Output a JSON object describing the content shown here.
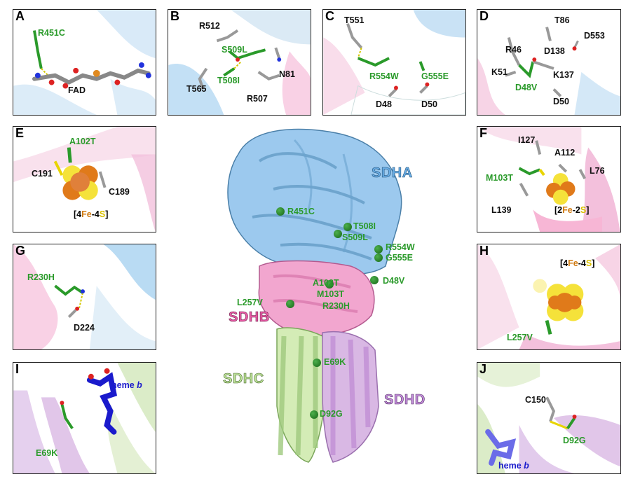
{
  "panels": {
    "A": {
      "letter": "A",
      "labels": [
        "R451C",
        "FAD"
      ]
    },
    "B": {
      "letter": "B",
      "labels": [
        "R512",
        "S509L",
        "T508I",
        "T565",
        "R507",
        "N81"
      ]
    },
    "C": {
      "letter": "C",
      "labels": [
        "T551",
        "R554W",
        "G555E",
        "D48",
        "D50"
      ]
    },
    "D": {
      "letter": "D",
      "labels": [
        "T86",
        "D553",
        "R46",
        "D138",
        "K51",
        "K137",
        "D48V",
        "D50"
      ]
    },
    "E": {
      "letter": "E",
      "labels": [
        "A102T",
        "C191",
        "C189"
      ],
      "cluster": {
        "n1": "[4",
        "fe": "Fe",
        "dash": "-4",
        "s": "S",
        "end": "]"
      }
    },
    "F": {
      "letter": "F",
      "labels": [
        "I127",
        "A112",
        "M103T",
        "L76",
        "L139"
      ],
      "cluster": {
        "n1": "[2",
        "fe": "Fe",
        "dash": "-2",
        "s": "S",
        "end": "]"
      }
    },
    "G": {
      "letter": "G",
      "labels": [
        "R230H",
        "D224"
      ]
    },
    "H": {
      "letter": "H",
      "labels": [
        "L257V"
      ],
      "cluster": {
        "n1": "[4",
        "fe": "Fe",
        "dash": "-4",
        "s": "S",
        "end": "]"
      }
    },
    "I": {
      "letter": "I",
      "labels": [
        "heme",
        "b",
        "E69K"
      ]
    },
    "J": {
      "letter": "J",
      "labels": [
        "C150",
        "D92G",
        "heme",
        "b"
      ]
    }
  },
  "center": {
    "subunits": {
      "sdha": "SDHA",
      "sdhb": "SDHB",
      "sdhc": "SDHC",
      "sdhd": "SDHD"
    },
    "mutations": [
      "R451C",
      "T508I",
      "S509L",
      "R554W",
      "G555E",
      "A102T",
      "D48V",
      "M103T",
      "L257V",
      "R230H",
      "E69K",
      "D92G"
    ]
  },
  "colors": {
    "mutation": "#2a9a2a",
    "sdha": "#9cc9ee",
    "sdhb": "#f2a6cf",
    "sdhc": "#d4ecb6",
    "sdhd": "#d9b8e4",
    "heme": "#1a1acc",
    "iron": "#e07a1a",
    "sulfur": "#f5e23a"
  }
}
